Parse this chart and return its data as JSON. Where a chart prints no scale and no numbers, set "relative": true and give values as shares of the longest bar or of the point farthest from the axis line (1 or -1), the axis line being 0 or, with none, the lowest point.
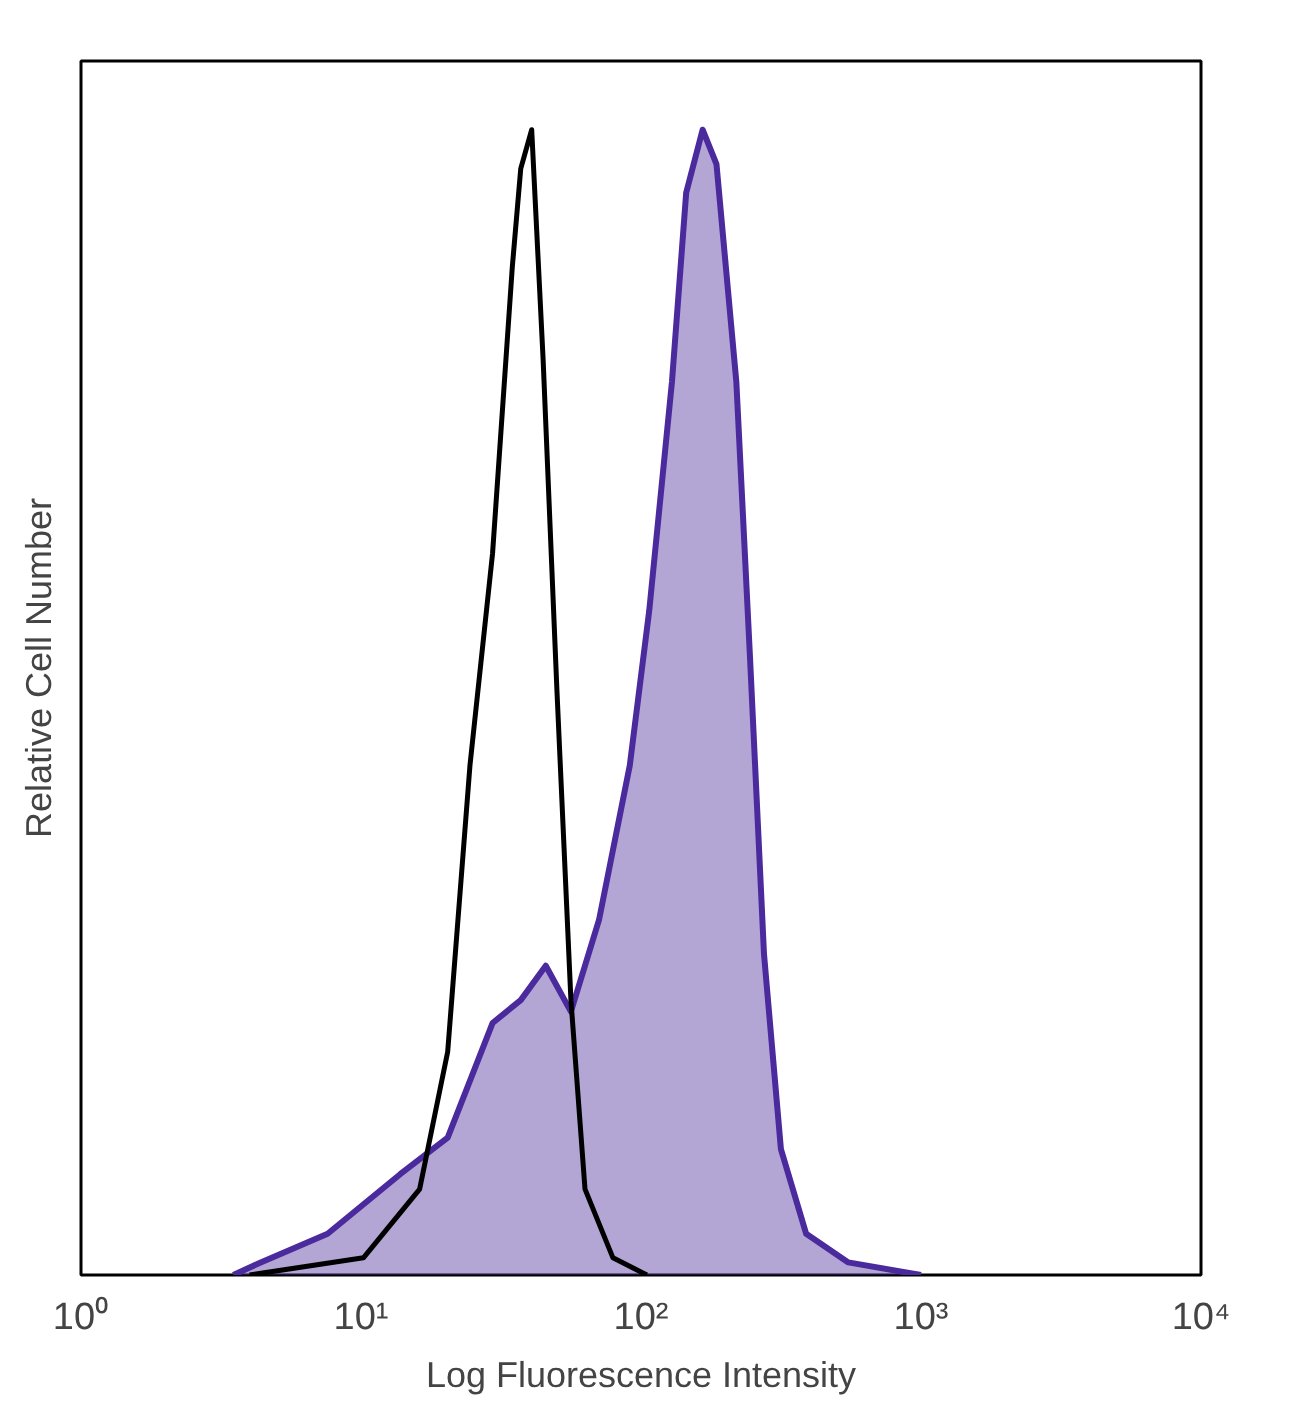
{
  "chart_data": {
    "type": "line",
    "xlabel": "Log Fluorescence Intensity",
    "ylabel": "Relative Cell Number",
    "relative": true,
    "log": "x",
    "grid": false,
    "xlim": [
      1,
      10000
    ],
    "xticks": [
      {
        "value": 1,
        "label": "10⁰"
      },
      {
        "value": 10,
        "label": "10¹"
      },
      {
        "value": 100,
        "label": "10²"
      },
      {
        "value": 1000,
        "label": "10³"
      },
      {
        "value": 10000,
        "label": "10⁴"
      }
    ],
    "series": [
      {
        "type": "area",
        "color": "#4a2a9c",
        "x": [
          3.5,
          4.3,
          7.6,
          13.8,
          20.4,
          29.5,
          37.2,
          45.7,
          56.2,
          70.8,
          91.2,
          107,
          129,
          145,
          166,
          186,
          219,
          245,
          275,
          316,
          389,
          550,
          1000
        ],
        "values": [
          0,
          0.01,
          0.036,
          0.088,
          0.12,
          0.22,
          0.24,
          0.27,
          0.23,
          0.31,
          0.445,
          0.58,
          0.78,
          0.945,
          1.0,
          0.97,
          0.78,
          0.54,
          0.28,
          0.11,
          0.036,
          0.011,
          0
        ]
      },
      {
        "color": "#000000",
        "x": [
          4,
          10.2,
          16.2,
          20.4,
          24.5,
          29.5,
          34.7,
          37.2,
          40.7,
          44.7,
          50.1,
          56.2,
          63.1,
          79.4,
          105
        ],
        "values": [
          0,
          0.015,
          0.075,
          0.195,
          0.445,
          0.63,
          0.88,
          0.966,
          1.0,
          0.8,
          0.51,
          0.24,
          0.075,
          0.015,
          0
        ]
      }
    ]
  }
}
